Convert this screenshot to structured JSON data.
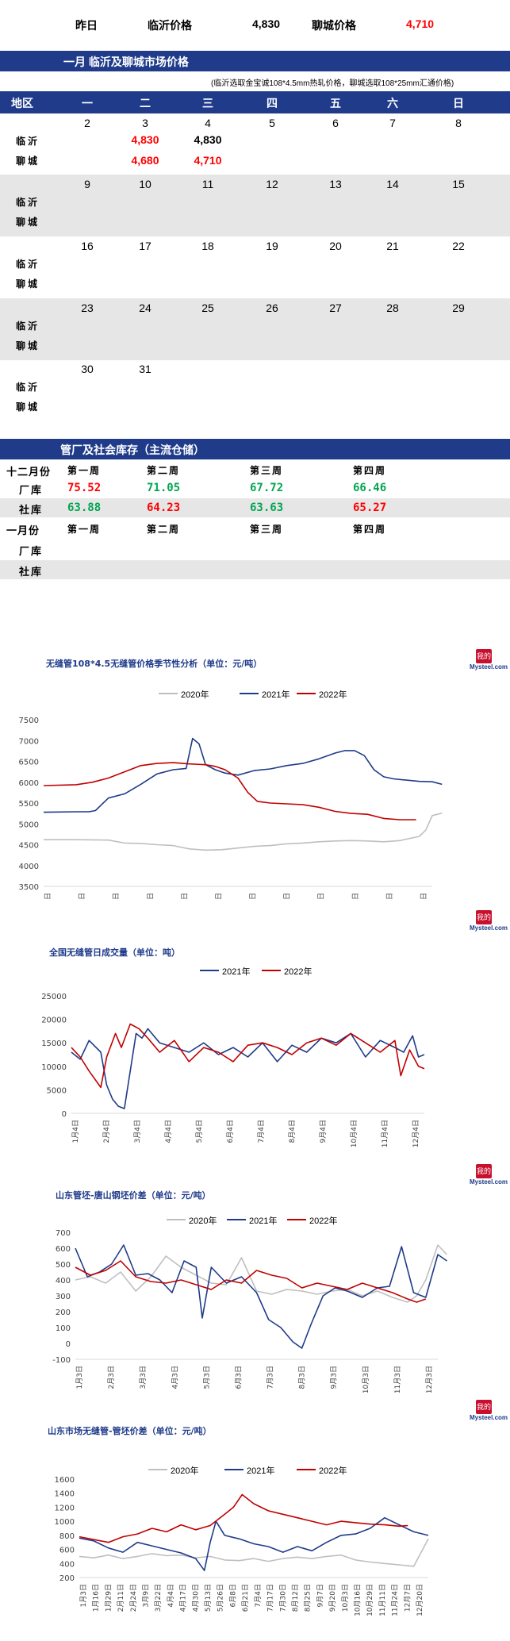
{
  "top": {
    "label_yesterday": "昨日",
    "linyi_label": "临沂价格",
    "linyi_value": "4,830",
    "liaocheng_label": "聊城价格",
    "liaocheng_value": "4,710"
  },
  "market": {
    "title": "一月  临沂及聊城市场价格",
    "note": "(临沂选取金宝诚108*4.5mm热轧价格，聊城选取108*25mm汇通价格)",
    "header": [
      "地区",
      "一",
      "二",
      "三",
      "四",
      "五",
      "六",
      "日"
    ],
    "cities": [
      "临沂",
      "聊城"
    ],
    "weeks": [
      {
        "days": [
          "2",
          "3",
          "4",
          "5",
          "6",
          "7",
          "8"
        ],
        "linyi": [
          "",
          "4,830",
          "4,830",
          "",
          "",
          "",
          ""
        ],
        "liaocheng": [
          "",
          "4,680",
          "4,710",
          "",
          "",
          "",
          ""
        ]
      },
      {
        "days": [
          "9",
          "10",
          "11",
          "12",
          "13",
          "14",
          "15"
        ],
        "linyi": [
          "",
          "",
          "",
          "",
          "",
          "",
          ""
        ],
        "liaocheng": [
          "",
          "",
          "",
          "",
          "",
          "",
          ""
        ]
      },
      {
        "days": [
          "16",
          "17",
          "18",
          "19",
          "20",
          "21",
          "22"
        ],
        "linyi": [
          "",
          "",
          "",
          "",
          "",
          "",
          ""
        ],
        "liaocheng": [
          "",
          "",
          "",
          "",
          "",
          "",
          ""
        ]
      },
      {
        "days": [
          "23",
          "24",
          "25",
          "26",
          "27",
          "28",
          "29"
        ],
        "linyi": [
          "",
          "",
          "",
          "",
          "",
          "",
          ""
        ],
        "liaocheng": [
          "",
          "",
          "",
          "",
          "",
          "",
          ""
        ]
      },
      {
        "days": [
          "30",
          "31",
          "",
          "",
          "",
          "",
          ""
        ],
        "linyi": [
          "",
          "",
          "",
          "",
          "",
          "",
          ""
        ],
        "liaocheng": [
          "",
          "",
          "",
          "",
          "",
          "",
          ""
        ]
      }
    ]
  },
  "inventory": {
    "title": "管厂及社会库存（主流仓储）",
    "dec_label": "十二月份",
    "jan_label": "一月份",
    "week_labels": [
      "第一周",
      "第二周",
      "第三周",
      "第四周"
    ],
    "factory_label": "厂库",
    "social_label": "社库",
    "dec_factory": [
      "75.52",
      "71.05",
      "67.72",
      "66.46"
    ],
    "dec_social": [
      "63.88",
      "64.23",
      "63.63",
      "65.27"
    ]
  },
  "logo": {
    "mark": "我的钢铁",
    "text": "Mysteel.com"
  },
  "colors": {
    "y2020": "#bfbfbf",
    "y2021": "#1f3b8a",
    "y2022": "#c00000"
  },
  "chart_data": [
    {
      "type": "line",
      "title": "无缝管108*4.5无缝管价格季节性分析（单位：元/吨）",
      "ylim": [
        3500,
        7500
      ],
      "yticks": [
        3500,
        4000,
        4500,
        5000,
        5500,
        6000,
        6500,
        7000,
        7500
      ],
      "xticks": [
        "1月2日",
        "2月2日",
        "3月2日",
        "4月2日",
        "5月2日",
        "6月2日",
        "7月2日",
        "8月2日",
        "9月2日",
        "10月2日",
        "11月2日",
        "12月2日"
      ],
      "xlim": [
        0,
        12
      ],
      "series": [
        {
          "name": "2020年",
          "color_key": "y2020",
          "x": [
            0,
            1,
            2,
            2.5,
            3,
            3.5,
            4,
            4.5,
            5,
            5.5,
            6,
            6.5,
            7,
            7.5,
            8,
            8.5,
            9,
            9.5,
            10,
            10.5,
            11,
            11.3,
            11.6,
            11.8,
            12,
            12.3
          ],
          "y": [
            4620,
            4620,
            4610,
            4540,
            4530,
            4500,
            4480,
            4400,
            4370,
            4380,
            4420,
            4460,
            4480,
            4520,
            4540,
            4570,
            4590,
            4600,
            4590,
            4570,
            4600,
            4650,
            4700,
            4850,
            5200,
            5260
          ]
        },
        {
          "name": "2021年",
          "color_key": "y2021",
          "x": [
            0,
            1,
            1.4,
            1.6,
            2,
            2.5,
            3,
            3.5,
            4,
            4.4,
            4.6,
            4.8,
            5,
            5.3,
            5.6,
            6,
            6.5,
            7,
            7.5,
            8,
            8.5,
            9,
            9.3,
            9.6,
            9.9,
            10.2,
            10.5,
            10.8,
            11.2,
            11.6,
            12,
            12.3
          ],
          "y": [
            5280,
            5290,
            5290,
            5320,
            5620,
            5720,
            5950,
            6200,
            6300,
            6330,
            7050,
            6920,
            6420,
            6300,
            6220,
            6170,
            6280,
            6320,
            6400,
            6450,
            6560,
            6700,
            6760,
            6760,
            6640,
            6300,
            6130,
            6080,
            6050,
            6020,
            6010,
            5950
          ]
        },
        {
          "name": "2022年",
          "color_key": "y2022",
          "x": [
            0,
            1,
            1.5,
            2,
            2.5,
            3,
            3.5,
            4,
            4.5,
            5,
            5.3,
            5.6,
            6,
            6.3,
            6.6,
            7,
            7.5,
            8,
            8.5,
            9,
            9.5,
            10,
            10.5,
            11,
            11.5
          ],
          "y": [
            5920,
            5940,
            6000,
            6100,
            6250,
            6400,
            6450,
            6470,
            6440,
            6420,
            6380,
            6300,
            6100,
            5760,
            5540,
            5500,
            5480,
            5460,
            5400,
            5300,
            5250,
            5230,
            5130,
            5100,
            5100
          ]
        }
      ]
    },
    {
      "type": "line",
      "title": "全国无缝管日成交量（单位：吨）",
      "ylim": [
        0,
        25000
      ],
      "yticks": [
        0,
        5000,
        10000,
        15000,
        20000,
        25000
      ],
      "xticks": [
        "1月4日",
        "2月4日",
        "3月4日",
        "4月4日",
        "5月4日",
        "6月4日",
        "7月4日",
        "8月4日",
        "9月4日",
        "10月4日",
        "11月4日",
        "12月4日"
      ],
      "xlim": [
        0,
        12
      ],
      "series": [
        {
          "name": "2021年",
          "color_key": "y2021",
          "x": [
            0,
            0.3,
            0.6,
            1.0,
            1.2,
            1.4,
            1.6,
            1.8,
            2.0,
            2.2,
            2.4,
            2.6,
            3,
            3.5,
            4,
            4.5,
            5,
            5.5,
            6,
            6.5,
            7,
            7.5,
            8,
            8.5,
            9,
            9.5,
            10,
            10.5,
            11,
            11.3,
            11.6,
            11.8,
            12
          ],
          "y": [
            13000,
            11500,
            15500,
            13000,
            6000,
            3000,
            1500,
            1000,
            9000,
            17000,
            16000,
            18000,
            15000,
            14000,
            13000,
            15000,
            12500,
            14000,
            12000,
            15000,
            11000,
            14500,
            13000,
            16000,
            15000,
            17000,
            12000,
            15500,
            14000,
            13000,
            16500,
            12000,
            12500
          ]
        },
        {
          "name": "2022年",
          "color_key": "y2022",
          "x": [
            0,
            0.3,
            0.6,
            1.0,
            1.2,
            1.5,
            1.7,
            2.0,
            2.3,
            2.6,
            3,
            3.5,
            4,
            4.5,
            5,
            5.5,
            6,
            6.5,
            7,
            7.5,
            8,
            8.5,
            9,
            9.5,
            10,
            10.5,
            11,
            11.2,
            11.5,
            11.8,
            12
          ],
          "y": [
            14000,
            12000,
            9000,
            5500,
            12000,
            17000,
            14000,
            19000,
            18000,
            16000,
            13000,
            15500,
            11000,
            14000,
            13000,
            11000,
            14500,
            15000,
            14000,
            12500,
            15000,
            16000,
            14500,
            17000,
            15000,
            13000,
            15500,
            8000,
            13500,
            10000,
            9500
          ]
        }
      ]
    },
    {
      "type": "line",
      "title": "山东管坯-唐山钢坯价差（单位：元/吨）",
      "ylim": [
        -100,
        700
      ],
      "yticks": [
        -100,
        0,
        100,
        200,
        300,
        400,
        500,
        600,
        700
      ],
      "xticks": [
        "1月3日",
        "2月3日",
        "3月3日",
        "4月3日",
        "5月3日",
        "6月3日",
        "7月3日",
        "8月3日",
        "9月3日",
        "10月3日",
        "11月3日",
        "12月3日"
      ],
      "xlim": [
        0,
        12
      ],
      "series": [
        {
          "name": "2020年",
          "color_key": "y2020",
          "x": [
            0,
            0.5,
            1,
            1.5,
            2,
            2.5,
            3,
            3.5,
            4,
            4.5,
            5,
            5.5,
            6,
            6.5,
            7,
            7.5,
            8,
            8.5,
            9,
            9.5,
            10,
            10.5,
            11,
            11.3,
            11.6,
            12,
            12.3
          ],
          "y": [
            400,
            420,
            380,
            450,
            330,
            420,
            550,
            480,
            430,
            380,
            370,
            540,
            330,
            310,
            340,
            330,
            310,
            330,
            340,
            300,
            330,
            290,
            260,
            300,
            400,
            620,
            560
          ]
        },
        {
          "name": "2021年",
          "color_key": "y2021",
          "x": [
            0,
            0.4,
            0.8,
            1.2,
            1.6,
            2.0,
            2.4,
            2.8,
            3.2,
            3.6,
            4.0,
            4.2,
            4.5,
            5,
            5.5,
            6,
            6.4,
            6.8,
            7.2,
            7.5,
            7.8,
            8.2,
            8.6,
            9,
            9.5,
            10,
            10.4,
            10.8,
            11.2,
            11.6,
            12,
            12.3
          ],
          "y": [
            600,
            420,
            450,
            500,
            620,
            430,
            440,
            400,
            320,
            520,
            480,
            160,
            480,
            380,
            420,
            320,
            150,
            100,
            10,
            -30,
            120,
            300,
            350,
            330,
            290,
            350,
            360,
            610,
            320,
            290,
            560,
            520
          ]
        },
        {
          "name": "2022年",
          "color_key": "y2022",
          "x": [
            0,
            0.5,
            1,
            1.5,
            2,
            2.5,
            3,
            3.5,
            4,
            4.5,
            5,
            5.5,
            6,
            6.5,
            7,
            7.5,
            8,
            8.5,
            9,
            9.5,
            10,
            10.5,
            11,
            11.3,
            11.6
          ],
          "y": [
            480,
            430,
            460,
            520,
            420,
            390,
            380,
            400,
            370,
            340,
            400,
            380,
            460,
            430,
            410,
            350,
            380,
            360,
            340,
            380,
            350,
            320,
            280,
            260,
            280
          ]
        }
      ]
    },
    {
      "type": "line",
      "title": "山东市场无缝管-管坯价差（单位：元/吨）",
      "ylim": [
        200,
        1600
      ],
      "yticks": [
        200,
        400,
        600,
        800,
        1000,
        1200,
        1400,
        1600
      ],
      "xticks": [
        "1月3日",
        "1月16日",
        "1月29日",
        "2月11日",
        "2月24日",
        "3月9日",
        "3月22日",
        "4月4日",
        "4月17日",
        "4月30日",
        "5月13日",
        "5月26日",
        "6月8日",
        "6月21日",
        "7月4日",
        "7月17日",
        "7月30日",
        "8月12日",
        "8月25日",
        "9月7日",
        "9月20日",
        "10月3日",
        "10月16日",
        "10月29日",
        "11月11日",
        "11月24日",
        "12月7日",
        "12月20日"
      ],
      "xlim": [
        0,
        12
      ],
      "series": [
        {
          "name": "2020年",
          "color_key": "y2020",
          "x": [
            0,
            0.5,
            1,
            1.5,
            2,
            2.5,
            3,
            3.5,
            4,
            4.5,
            5,
            5.5,
            6,
            6.5,
            7,
            7.5,
            8,
            8.5,
            9,
            9.5,
            10,
            10.5,
            11,
            11.5,
            12
          ],
          "y": [
            500,
            480,
            520,
            470,
            500,
            540,
            510,
            520,
            480,
            500,
            450,
            440,
            470,
            430,
            470,
            490,
            470,
            500,
            520,
            450,
            420,
            400,
            380,
            360,
            750
          ]
        },
        {
          "name": "2021年",
          "color_key": "y2021",
          "x": [
            0,
            0.5,
            1,
            1.5,
            2,
            2.5,
            3,
            3.5,
            4,
            4.3,
            4.5,
            4.7,
            5,
            5.5,
            6,
            6.5,
            7,
            7.5,
            8,
            8.5,
            9,
            9.5,
            10,
            10.5,
            11,
            11.5,
            12
          ],
          "y": [
            760,
            720,
            620,
            560,
            700,
            650,
            600,
            550,
            470,
            300,
            700,
            1000,
            800,
            750,
            680,
            640,
            560,
            640,
            580,
            700,
            800,
            820,
            900,
            1050,
            950,
            850,
            800
          ]
        },
        {
          "name": "2022年",
          "color_key": "y2022",
          "x": [
            0,
            0.5,
            1,
            1.5,
            2,
            2.5,
            3,
            3.5,
            4,
            4.5,
            5,
            5.3,
            5.6,
            6,
            6.5,
            7,
            7.5,
            8,
            8.5,
            9,
            9.5,
            10,
            10.5,
            11,
            11.3
          ],
          "y": [
            780,
            740,
            700,
            780,
            820,
            900,
            850,
            950,
            880,
            940,
            1100,
            1200,
            1380,
            1250,
            1150,
            1100,
            1050,
            1000,
            950,
            1000,
            980,
            960,
            950,
            930,
            940
          ]
        }
      ]
    }
  ]
}
